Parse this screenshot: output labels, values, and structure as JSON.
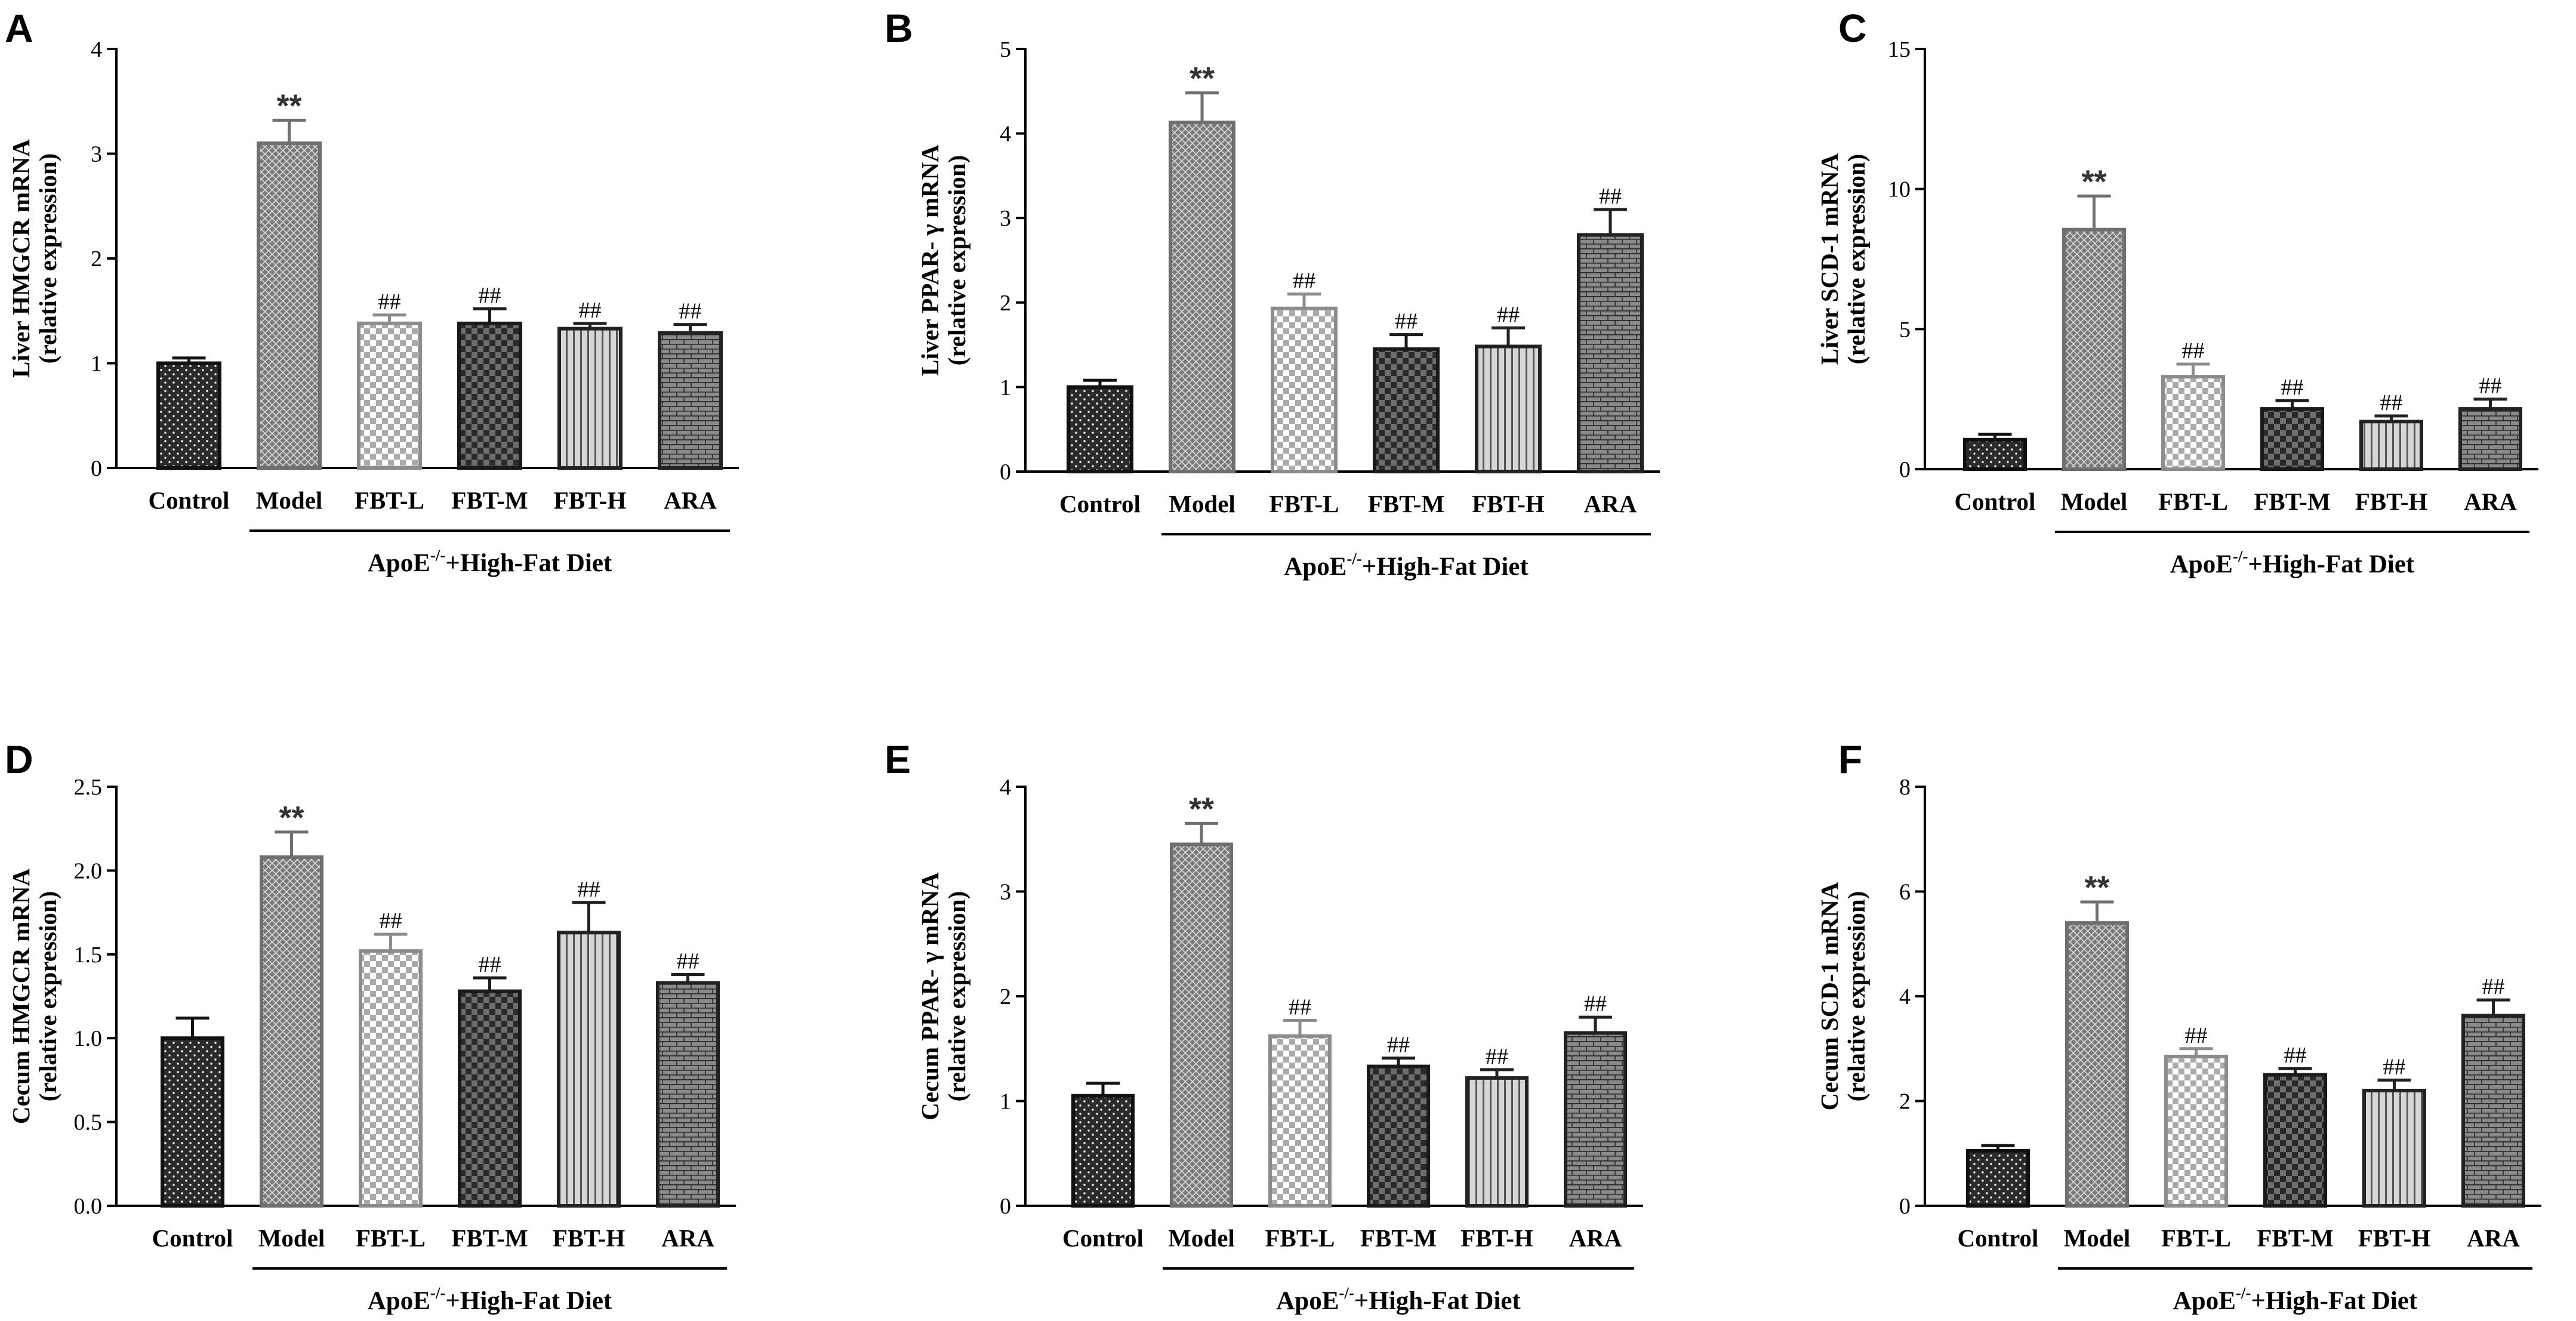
{
  "figure": {
    "group_label": {
      "main": "ApoE",
      "sup": "-/-",
      "rest": "+High-Fat Diet"
    },
    "colors": {
      "axis": "#000000",
      "model_gray": "#777777",
      "dark": "#222222",
      "light_gray": "#999999"
    }
  },
  "chart_data": [
    {
      "type": "bar",
      "panel": "A",
      "ylabel_line1": "Liver HMGCR mRNA",
      "ylabel_line2": "(relative expression)",
      "categories": [
        "Control",
        "Model",
        "FBT-L",
        "FBT-M",
        "FBT-H",
        "ARA"
      ],
      "values": [
        1.0,
        3.1,
        1.38,
        1.38,
        1.33,
        1.29
      ],
      "errors": [
        0.05,
        0.22,
        0.08,
        0.14,
        0.05,
        0.08
      ],
      "significance": [
        "",
        "**",
        "##",
        "##",
        "##",
        "##"
      ],
      "ylim": [
        0,
        4
      ],
      "yticks": [
        0,
        1,
        2,
        3,
        4
      ],
      "ytick_labels": [
        "0",
        "1",
        "2",
        "3",
        "4"
      ]
    },
    {
      "type": "bar",
      "panel": "B",
      "ylabel_line1": "Liver PPAR- γ mRNA",
      "ylabel_line2": "(relative expression)",
      "categories": [
        "Control",
        "Model",
        "FBT-L",
        "FBT-M",
        "FBT-H",
        "ARA"
      ],
      "values": [
        1.0,
        4.13,
        1.93,
        1.45,
        1.48,
        2.8
      ],
      "errors": [
        0.08,
        0.35,
        0.17,
        0.17,
        0.22,
        0.3
      ],
      "significance": [
        "",
        "**",
        "##",
        "##",
        "##",
        "##"
      ],
      "ylim": [
        0,
        5
      ],
      "yticks": [
        0,
        1,
        2,
        3,
        4,
        5
      ],
      "ytick_labels": [
        "0",
        "1",
        "2",
        "3",
        "4",
        "5"
      ]
    },
    {
      "type": "bar",
      "panel": "C",
      "ylabel_line1": "Liver SCD-1 mRNA",
      "ylabel_line2": "(relative expression)",
      "categories": [
        "Control",
        "Model",
        "FBT-L",
        "FBT-M",
        "FBT-H",
        "ARA"
      ],
      "values": [
        1.05,
        8.55,
        3.3,
        2.15,
        1.7,
        2.15
      ],
      "errors": [
        0.2,
        1.2,
        0.45,
        0.3,
        0.2,
        0.35
      ],
      "significance": [
        "",
        "**",
        "##",
        "##",
        "##",
        "##"
      ],
      "ylim": [
        0,
        15
      ],
      "yticks": [
        0,
        5,
        10,
        15
      ],
      "ytick_labels": [
        "0",
        "5",
        "10",
        "15"
      ]
    },
    {
      "type": "bar",
      "panel": "D",
      "ylabel_line1": "Cecum HMGCR mRNA",
      "ylabel_line2": "(relative expression)",
      "categories": [
        "Control",
        "Model",
        "FBT-L",
        "FBT-M",
        "FBT-H",
        "ARA"
      ],
      "values": [
        1.0,
        2.08,
        1.52,
        1.28,
        1.63,
        1.33
      ],
      "errors": [
        0.12,
        0.15,
        0.1,
        0.08,
        0.18,
        0.05
      ],
      "significance": [
        "",
        "**",
        "##",
        "##",
        "##",
        "##"
      ],
      "ylim": [
        0,
        2.5
      ],
      "yticks": [
        0,
        0.5,
        1,
        1.5,
        2,
        2.5
      ],
      "ytick_labels": [
        "0.0",
        "0.5",
        "1.0",
        "1.5",
        "2.0",
        "2.5"
      ]
    },
    {
      "type": "bar",
      "panel": "E",
      "ylabel_line1": "Cecum PPAR- γ mRNA",
      "ylabel_line2": "(relative expression)",
      "categories": [
        "Control",
        "Model",
        "FBT-L",
        "FBT-M",
        "FBT-H",
        "ARA"
      ],
      "values": [
        1.05,
        3.45,
        1.62,
        1.33,
        1.22,
        1.65
      ],
      "errors": [
        0.12,
        0.2,
        0.15,
        0.08,
        0.08,
        0.15
      ],
      "significance": [
        "",
        "**",
        "##",
        "##",
        "##",
        "##"
      ],
      "ylim": [
        0,
        4
      ],
      "yticks": [
        0,
        1,
        2,
        3,
        4
      ],
      "ytick_labels": [
        "0",
        "1",
        "2",
        "3",
        "4"
      ]
    },
    {
      "type": "bar",
      "panel": "F",
      "ylabel_line1": "Cecum SCD-1 mRNA",
      "ylabel_line2": "(relative expression)",
      "categories": [
        "Control",
        "Model",
        "FBT-L",
        "FBT-M",
        "FBT-H",
        "ARA"
      ],
      "values": [
        1.05,
        5.4,
        2.85,
        2.5,
        2.2,
        3.63
      ],
      "errors": [
        0.1,
        0.4,
        0.15,
        0.12,
        0.2,
        0.3
      ],
      "significance": [
        "",
        "**",
        "##",
        "##",
        "##",
        "##"
      ],
      "ylim": [
        0,
        8
      ],
      "yticks": [
        0,
        2,
        4,
        6,
        8
      ],
      "ytick_labels": [
        "0",
        "2",
        "4",
        "6",
        "8"
      ]
    }
  ]
}
